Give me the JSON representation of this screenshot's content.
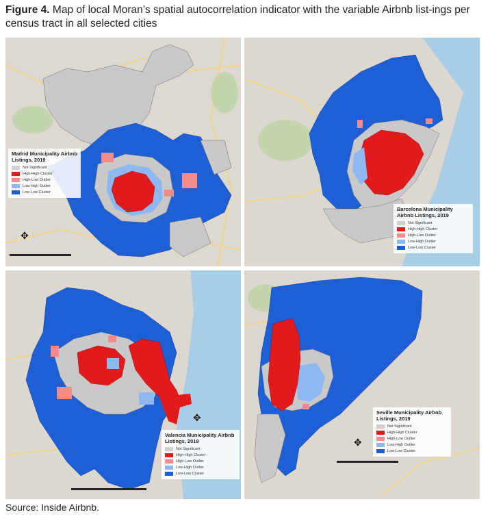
{
  "figure": {
    "label": "Figure 4.",
    "caption": "Map of local Moran’s spatial autocorrelation indicator with the variable Airbnb list-ings per census tract in all selected cities"
  },
  "colors": {
    "not_significant": "#cfcfcf",
    "high_high": "#e31a1c",
    "high_low": "#f48a8a",
    "low_high": "#8fb8f0",
    "low_low": "#1f5fd6"
  },
  "maps": [
    {
      "city": "Madrid",
      "legend_title": "Madrid Municipality Airbnb Listings, 2019",
      "legend_items": [
        "Not Significant",
        "High-High Cluster",
        "High-Low Outlier",
        "Low-High Outlier",
        "Low-Low Cluster"
      ]
    },
    {
      "city": "Barcelona",
      "legend_title": "Barcelona Municipality Airbnb Listings, 2019",
      "legend_items": [
        "Not Significant",
        "High-High Cluster",
        "High-Low Outlier",
        "Low-High Outlier",
        "Low-Low Cluster"
      ]
    },
    {
      "city": "Valencia",
      "legend_title": "Valencia Municipality Airbnb Listings, 2019",
      "legend_items": [
        "Not Significant",
        "High-High Cluster",
        "High-Low Outlier",
        "Low-High Outlier",
        "Low-Low Cluster"
      ]
    },
    {
      "city": "Seville",
      "legend_title": "Seville Municipality Airbnb Listings, 2019",
      "legend_items": [
        "Not Significant",
        "High-High Cluster",
        "High-Low Outlier",
        "Low-High Outlier",
        "Low-Low Cluster"
      ]
    }
  ],
  "source": "Source: Inside Airbnb."
}
